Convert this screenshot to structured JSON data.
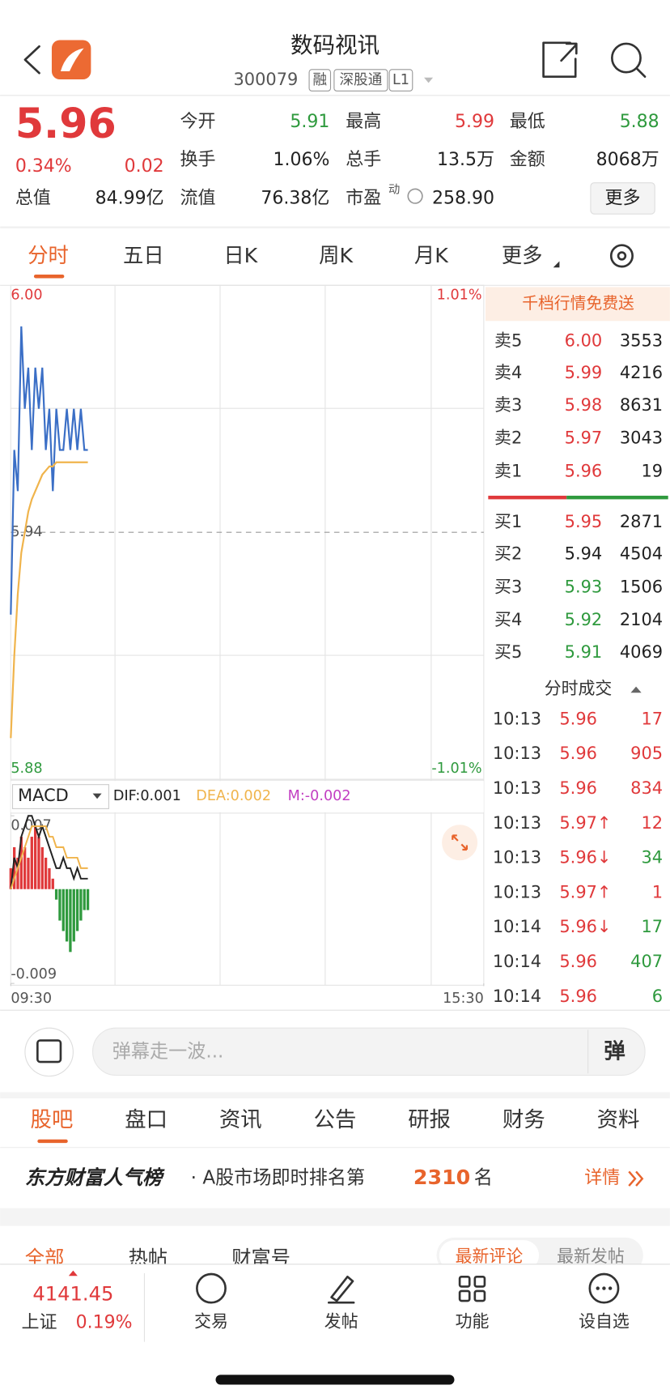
{
  "header": {
    "title": "数码视讯",
    "code": "300079",
    "tags": [
      "融",
      "深股通",
      "L1"
    ]
  },
  "quote": {
    "price": "5.96",
    "change_pct": "0.34%",
    "change": "0.02",
    "fields": [
      [
        "今开",
        "5.91"
      ],
      [
        "最高",
        "5.99"
      ],
      [
        "最低",
        "5.88"
      ],
      [
        "换手",
        "1.06%"
      ],
      [
        "总手",
        "13.5万"
      ],
      [
        "金额",
        "8068万"
      ],
      [
        "总值",
        "84.99亿"
      ],
      [
        "流值",
        "76.38亿"
      ],
      [
        "市盈",
        "258.90"
      ]
    ],
    "pe_mark": "动",
    "more": "更多"
  },
  "chart_tabs": [
    "分时",
    "五日",
    "日K",
    "周K",
    "月K",
    "更多"
  ],
  "chart_data": [
    {
      "type": "line",
      "x": [
        0,
        2,
        4,
        6,
        8,
        10,
        12,
        14,
        16,
        18,
        20,
        22,
        24,
        26,
        28,
        30,
        32,
        34,
        36,
        38,
        40,
        42,
        44
      ],
      "series": [
        {
          "color": "#3b6fc6",
          "values": [
            5.92,
            5.96,
            5.95,
            5.99,
            5.97,
            5.98,
            5.96,
            5.98,
            5.97,
            5.98,
            5.96,
            5.97,
            5.95,
            5.97,
            5.96,
            5.96,
            5.97,
            5.96,
            5.97,
            5.96,
            5.97,
            5.96,
            5.96
          ]
        },
        {
          "color": "#f0b44c",
          "values": [
            5.89,
            5.91,
            5.925,
            5.935,
            5.94,
            5.945,
            5.948,
            5.95,
            5.952,
            5.954,
            5.955,
            5.956,
            5.956,
            5.957,
            5.957,
            5.957,
            5.957,
            5.957,
            5.957,
            5.957,
            5.957,
            5.957,
            5.957
          ]
        }
      ],
      "xlim": [
        0,
        270
      ],
      "ylim": [
        5.88,
        6.0
      ],
      "yticks": [
        {
          "value": 6.0,
          "label": "6.00"
        },
        {
          "value": 5.94,
          "label": "5.94"
        },
        {
          "value": 5.88,
          "label": "5.88"
        }
      ],
      "y2lim": [
        -1.01,
        1.01
      ],
      "y2ticks": [
        {
          "value": 1.01,
          "label": "1.01%"
        },
        {
          "value": -1.01,
          "label": "-1.01%"
        }
      ]
    },
    {
      "type": "macd",
      "title": "MACD",
      "x": [
        0,
        2,
        4,
        6,
        8,
        10,
        12,
        14,
        16,
        18,
        20,
        22,
        24,
        26,
        28,
        30,
        32,
        34,
        36,
        38,
        40,
        42,
        44
      ],
      "series": [
        {
          "name": "DIF",
          "legend_label": "DIF:0.001",
          "color": "#222222",
          "values": [
            0,
            0.003,
            0.002,
            0.005,
            0.006,
            0.007,
            0.007,
            0.006,
            0.005,
            0.006,
            0.005,
            0.004,
            0.003,
            0.002,
            0.002,
            0.003,
            0.002,
            0.002,
            0.001,
            0.002,
            0.001,
            0.001,
            0.001
          ]
        },
        {
          "name": "DEA",
          "legend_label": "DEA:0.002",
          "color": "#f0b44c",
          "values": [
            0,
            0.001,
            0.002,
            0.003,
            0.004,
            0.005,
            0.006,
            0.006,
            0.006,
            0.006,
            0.006,
            0.005,
            0.005,
            0.004,
            0.004,
            0.004,
            0.003,
            0.003,
            0.003,
            0.003,
            0.002,
            0.002,
            0.002
          ]
        },
        {
          "name": "M",
          "legend_label": "M:-0.002",
          "color": "#c23fc2",
          "values": [
            0.002,
            0.004,
            0.003,
            0.005,
            0.004,
            0.003,
            0.005,
            0.006,
            0.005,
            0.004,
            0.003,
            0.002,
            0.001,
            -0.001,
            -0.003,
            -0.004,
            -0.005,
            -0.006,
            -0.005,
            -0.004,
            -0.003,
            -0.002,
            -0.002
          ]
        }
      ],
      "up_color": "#e0393b",
      "down_color": "#2f9a3e",
      "xlim": [
        0,
        270
      ],
      "xticks": [
        {
          "value": 0,
          "label": "09:30"
        },
        {
          "value": 270,
          "label": "15:30"
        }
      ],
      "ylim": [
        -0.009,
        0.007
      ],
      "yticks": [
        {
          "value": 0.007,
          "label": "0.007"
        },
        {
          "value": -0.009,
          "label": "-0.009"
        }
      ]
    }
  ],
  "order_book": {
    "banner": "千档行情免费送",
    "asks": [
      [
        "卖5",
        "6.00",
        "3553"
      ],
      [
        "卖4",
        "5.99",
        "4216"
      ],
      [
        "卖3",
        "5.98",
        "8631"
      ],
      [
        "卖2",
        "5.97",
        "3043"
      ],
      [
        "卖1",
        "5.96",
        "19"
      ]
    ],
    "bids": [
      [
        "买1",
        "5.95",
        "2871"
      ],
      [
        "买2",
        "5.94",
        "4504"
      ],
      [
        "买3",
        "5.93",
        "1506"
      ],
      [
        "买4",
        "5.92",
        "2104"
      ],
      [
        "买5",
        "5.91",
        "4069"
      ]
    ]
  },
  "trades": {
    "title": "分时成交",
    "rows": [
      [
        "10:13",
        "5.96",
        "17"
      ],
      [
        "10:13",
        "5.96",
        "905"
      ],
      [
        "10:13",
        "5.96",
        "834"
      ],
      [
        "10:13",
        "5.97↑",
        "12"
      ],
      [
        "10:13",
        "5.96↓",
        "34"
      ],
      [
        "10:13",
        "5.97↑",
        "1"
      ],
      [
        "10:14",
        "5.96↓",
        "17"
      ],
      [
        "10:14",
        "5.96",
        "407"
      ],
      [
        "10:14",
        "5.96",
        "6"
      ]
    ]
  },
  "comment": {
    "placeholder": "弹幕走一波...",
    "button": "弹"
  },
  "tabs": [
    "股吧",
    "盘口",
    "资讯",
    "公告",
    "研报",
    "财务",
    "资料"
  ],
  "rank": {
    "brand": "东方财富人气榜",
    "text": "· A股市场即时排名第",
    "rank": "2310",
    "suffix": "名",
    "link": "详情"
  },
  "feed_tabs": [
    "全部",
    "热帖",
    "财富号"
  ],
  "sort_tabs": [
    "最新评论",
    "最新发帖"
  ],
  "footer": {
    "index_value": "4141.45",
    "index_name": "上证",
    "index_change": "0.19%",
    "actions": [
      "交易",
      "发帖",
      "功能",
      "设自选"
    ]
  }
}
